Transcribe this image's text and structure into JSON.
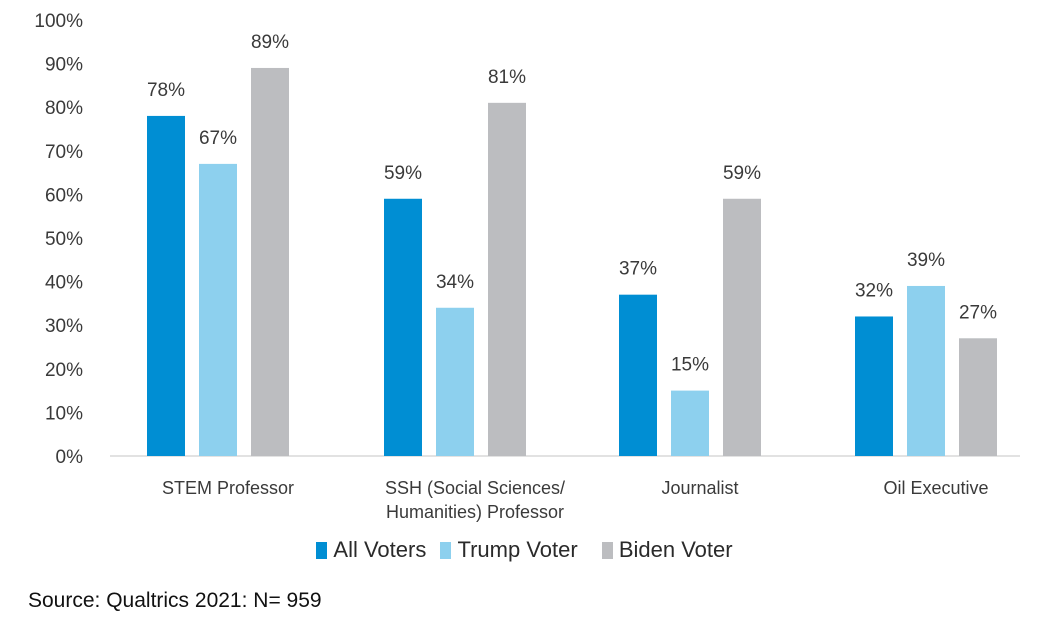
{
  "chart_data": {
    "type": "bar",
    "title": "",
    "xlabel": "",
    "ylabel": "",
    "ylim": [
      0,
      100
    ],
    "y_ticks": [
      "0%",
      "10%",
      "20%",
      "30%",
      "40%",
      "50%",
      "60%",
      "70%",
      "80%",
      "90%",
      "100%"
    ],
    "grid": false,
    "legend_position": "bottom",
    "categories": [
      [
        "STEM Professor"
      ],
      [
        "SSH (Social Sciences/",
        "Humanities) Professor"
      ],
      [
        "Journalist"
      ],
      [
        "Oil Executive"
      ]
    ],
    "series": [
      {
        "name": "All Voters",
        "color": "#008ED3",
        "values": [
          78,
          59,
          37,
          32
        ],
        "labels": [
          "78%",
          "59%",
          "37%",
          "32%"
        ]
      },
      {
        "name": "Trump Voter",
        "color": "#8DD0EE",
        "values": [
          67,
          34,
          15,
          39
        ],
        "labels": [
          "67%",
          "34%",
          "15%",
          "39%"
        ]
      },
      {
        "name": "Biden Voter",
        "color": "#BCBDC0",
        "values": [
          89,
          81,
          59,
          27
        ],
        "labels": [
          "89%",
          "81%",
          "59%",
          "27%"
        ]
      }
    ]
  },
  "legend": {
    "items": [
      {
        "name": "All Voters",
        "color": "#008ED3"
      },
      {
        "name": "Trump Voter",
        "color": "#8DD0EE"
      },
      {
        "name": "Biden Voter",
        "color": "#BCBDC0"
      }
    ]
  },
  "footer": {
    "source": "Source: Qualtrics 2021: N= 959"
  }
}
